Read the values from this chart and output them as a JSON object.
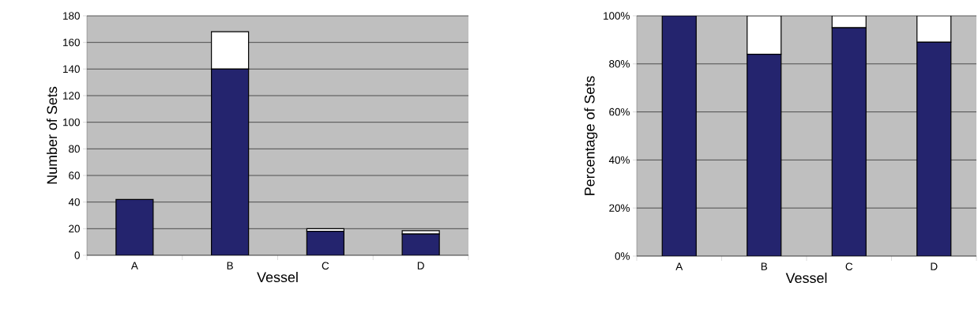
{
  "chart_data": [
    {
      "type": "bar",
      "stacked": true,
      "xlabel": "Vessel",
      "ylabel": "Number of Sets",
      "categories": [
        "A",
        "B",
        "C",
        "D"
      ],
      "series": [
        {
          "color": "#24246e",
          "values": [
            42,
            140,
            18,
            16
          ]
        },
        {
          "color": "#ffffff",
          "values": [
            0,
            28,
            2,
            2.5
          ]
        }
      ],
      "ylim": [
        0,
        180
      ],
      "yticks": [
        0,
        20,
        40,
        60,
        80,
        100,
        120,
        140,
        160,
        180
      ],
      "grid": "y"
    },
    {
      "type": "bar",
      "stacked": true,
      "xlabel": "Vessel",
      "ylabel": "Percentage of Sets",
      "categories": [
        "A",
        "B",
        "C",
        "D"
      ],
      "series": [
        {
          "color": "#24246e",
          "values": [
            100,
            84,
            95,
            89
          ]
        },
        {
          "color": "#ffffff",
          "values": [
            0,
            16,
            5,
            11
          ]
        }
      ],
      "ylim": [
        0,
        100
      ],
      "yticks": [
        {
          "value": 0,
          "label": "0%"
        },
        {
          "value": 20,
          "label": "20%"
        },
        {
          "value": 40,
          "label": "40%"
        },
        {
          "value": 60,
          "label": "60%"
        },
        {
          "value": 80,
          "label": "80%"
        },
        {
          "value": 100,
          "label": "100%"
        }
      ],
      "grid": "y"
    }
  ]
}
